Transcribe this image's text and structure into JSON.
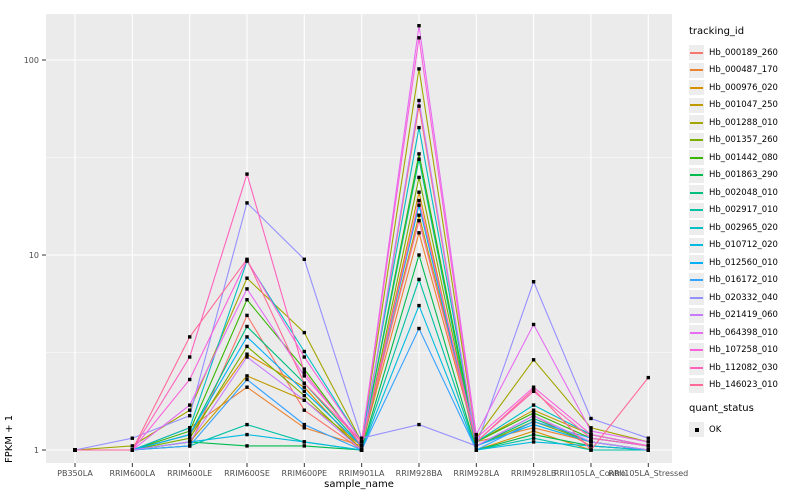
{
  "figure": {
    "panel_bg": "#EBEBEB",
    "grid_color": "#FFFFFF",
    "tick_color": "#333333",
    "tick_text_color": "#4D4D4D",
    "point_color": "#000000"
  },
  "axes": {
    "x_title": "sample_name",
    "y_title": "FPKM + 1"
  },
  "legend": {
    "tracking_title": "tracking_id",
    "quant_title": "quant_status",
    "quant_ok_label": "OK"
  },
  "chart_data": {
    "type": "line",
    "title": "",
    "xlabel": "sample_name",
    "ylabel": "FPKM + 1",
    "y_scale": "log10",
    "ylim": [
      0.85,
      172
    ],
    "y_ticks": [
      1,
      10,
      100
    ],
    "y_minor_ticks": [
      3.1623,
      31.623
    ],
    "grid": true,
    "legend_position": "right",
    "point_shape": "square",
    "point_color": "#000000",
    "quant_status": "OK",
    "categories": [
      "PB350LA",
      "RRIM600LA",
      "RRIM600LE",
      "RRIM600SE",
      "RRIM600PE",
      "RRIM901LA",
      "RRIM928BA",
      "RRIM928LA",
      "RRIM928LB",
      "RRII105LA_Control",
      "RRII105LA_Stressed"
    ],
    "series": [
      {
        "name": "Hb_000189_260",
        "color": "#F8766D",
        "values": [
          1.0,
          1.0,
          1.05,
          4.9,
          1.6,
          1.0,
          58,
          1.05,
          1.5,
          1.05,
          1.0
        ]
      },
      {
        "name": "Hb_000487_170",
        "color": "#EA8331",
        "values": [
          1.0,
          1.0,
          1.3,
          2.1,
          1.3,
          1.05,
          13,
          1.1,
          1.3,
          1.1,
          1.0
        ]
      },
      {
        "name": "Hb_000976_020",
        "color": "#D89000",
        "values": [
          1.0,
          1.0,
          1.2,
          3.1,
          2.1,
          1.0,
          21,
          1.0,
          1.25,
          1.0,
          1.0
        ]
      },
      {
        "name": "Hb_001047_250",
        "color": "#C09B00",
        "values": [
          1.0,
          1.0,
          1.1,
          2.4,
          1.8,
          1.05,
          16,
          1.1,
          1.6,
          1.2,
          1.05
        ]
      },
      {
        "name": "Hb_001288_010",
        "color": "#A3A500",
        "values": [
          1.0,
          1.05,
          1.6,
          7.6,
          4.0,
          1.1,
          90,
          1.15,
          2.9,
          1.3,
          1.1
        ]
      },
      {
        "name": "Hb_001357_260",
        "color": "#7CAE00",
        "values": [
          1.0,
          1.0,
          1.15,
          3.4,
          1.9,
          1.0,
          25,
          1.05,
          1.4,
          1.1,
          1.0
        ]
      },
      {
        "name": "Hb_001442_080",
        "color": "#39B600",
        "values": [
          1.0,
          1.0,
          1.25,
          5.9,
          2.6,
          1.05,
          33,
          1.1,
          1.55,
          1.15,
          1.05
        ]
      },
      {
        "name": "Hb_001863_290",
        "color": "#00BB4E",
        "values": [
          1.0,
          1.0,
          1.1,
          1.05,
          1.05,
          1.0,
          10,
          1.0,
          1.2,
          1.05,
          1.0
        ]
      },
      {
        "name": "Hb_002048_010",
        "color": "#00BF7D",
        "values": [
          1.0,
          1.0,
          1.2,
          4.3,
          2.2,
          1.05,
          31,
          1.05,
          1.45,
          1.1,
          1.0
        ]
      },
      {
        "name": "Hb_002917_010",
        "color": "#00C1A3",
        "values": [
          1.0,
          1.0,
          1.05,
          1.35,
          1.1,
          1.0,
          7.5,
          1.0,
          1.15,
          1.0,
          1.0
        ]
      },
      {
        "name": "Hb_002965_020",
        "color": "#00BFC4",
        "values": [
          1.0,
          1.0,
          1.3,
          9.3,
          3.2,
          1.1,
          45,
          1.1,
          1.7,
          1.2,
          1.05
        ]
      },
      {
        "name": "Hb_010712_020",
        "color": "#00BAE0",
        "values": [
          1.0,
          1.0,
          1.1,
          1.2,
          1.1,
          1.0,
          5.5,
          1.0,
          1.1,
          1.05,
          1.0
        ]
      },
      {
        "name": "Hb_012560_010",
        "color": "#00B0F6",
        "values": [
          1.0,
          1.0,
          1.2,
          3.8,
          2.0,
          1.05,
          18,
          1.05,
          1.35,
          1.1,
          1.0
        ]
      },
      {
        "name": "Hb_016172_010",
        "color": "#35A2FF",
        "values": [
          1.0,
          1.0,
          1.05,
          2.3,
          1.35,
          1.0,
          4.2,
          1.0,
          1.4,
          1.15,
          1.05
        ]
      },
      {
        "name": "Hb_020332_040",
        "color": "#9590FF",
        "values": [
          1.0,
          1.15,
          1.5,
          18.5,
          9.5,
          1.15,
          1.35,
          1.05,
          7.3,
          1.45,
          1.15
        ]
      },
      {
        "name": "Hb_021419_060",
        "color": "#C77CFF",
        "values": [
          1.0,
          1.0,
          1.1,
          3.0,
          1.8,
          1.0,
          62,
          1.05,
          1.5,
          1.1,
          1.0
        ]
      },
      {
        "name": "Hb_064398_010",
        "color": "#E76BF3",
        "values": [
          1.0,
          1.0,
          1.7,
          6.7,
          2.4,
          1.1,
          150,
          1.2,
          4.4,
          1.25,
          1.1
        ]
      },
      {
        "name": "Hb_107258_010",
        "color": "#FA62DB",
        "values": [
          1.0,
          1.0,
          2.3,
          9.4,
          3.0,
          1.1,
          130,
          1.15,
          2.1,
          1.2,
          1.05
        ]
      },
      {
        "name": "Hb_112082_030",
        "color": "#FF62BC",
        "values": [
          1.0,
          1.0,
          3.0,
          26,
          2.5,
          1.05,
          19,
          1.1,
          2.0,
          1.15,
          1.05
        ]
      },
      {
        "name": "Hb_146023_010",
        "color": "#FF6A98",
        "values": [
          1.0,
          1.0,
          3.8,
          9.5,
          2.2,
          1.1,
          15,
          1.1,
          2.05,
          1.0,
          2.35
        ]
      }
    ]
  }
}
